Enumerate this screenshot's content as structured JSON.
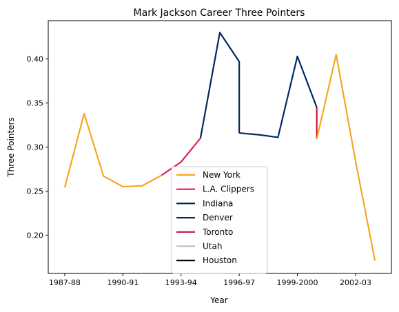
{
  "chart_data": {
    "type": "line",
    "title": "Mark Jackson  Career Three Pointers",
    "xlabel": "Year",
    "ylabel": "Three Pointers",
    "x_tick_labels": [
      "1987-88",
      "1990-91",
      "1993-94",
      "1996-97",
      "1999-2000",
      "2002-03"
    ],
    "x_tick_positions": [
      0,
      3,
      6,
      9,
      12,
      15
    ],
    "xlim": [
      -0.85,
      16.85
    ],
    "ylim": [
      0.1565,
      0.4435
    ],
    "y_ticks": [
      0.2,
      0.25,
      0.3,
      0.35,
      0.4
    ],
    "y_tick_labels": [
      "0.20",
      "0.25",
      "0.30",
      "0.35",
      "0.40"
    ],
    "grid": false,
    "legend_position": "lower-center",
    "series": [
      {
        "name": "New York",
        "color": "#f5a623",
        "x": [
          0,
          1,
          2,
          3,
          4,
          5
        ],
        "y": [
          0.254,
          0.338,
          0.267,
          0.255,
          0.256,
          0.268
        ]
      },
      {
        "name": "L.A. Clippers",
        "color": "#e31e50",
        "x": [
          5,
          6,
          7
        ],
        "y": [
          0.268,
          0.283,
          0.31
        ]
      },
      {
        "name": "Indiana",
        "color": "#00285e",
        "x": [
          7,
          8,
          9,
          9
        ],
        "y": [
          0.31,
          0.43,
          0.397,
          0.316
        ]
      },
      {
        "name": "Denver",
        "color": "#00285e",
        "x": [
          9,
          10,
          11,
          12,
          13
        ],
        "y": [
          0.316,
          0.314,
          0.311,
          0.403,
          0.345
        ]
      },
      {
        "name": "Toronto",
        "color": "#ce1141",
        "x": [
          13,
          13
        ],
        "y": [
          0.345,
          0.309
        ]
      },
      {
        "name": "Utah",
        "color": "#bebebe",
        "x": [],
        "y": []
      },
      {
        "name": "Houston",
        "color": "#000000",
        "x": [],
        "y": []
      },
      {
        "name": "New York",
        "color": "#f5a623",
        "x": [
          13,
          14,
          15,
          16
        ],
        "y": [
          0.309,
          0.405,
          0.284,
          0.171
        ],
        "legend": false
      }
    ]
  }
}
